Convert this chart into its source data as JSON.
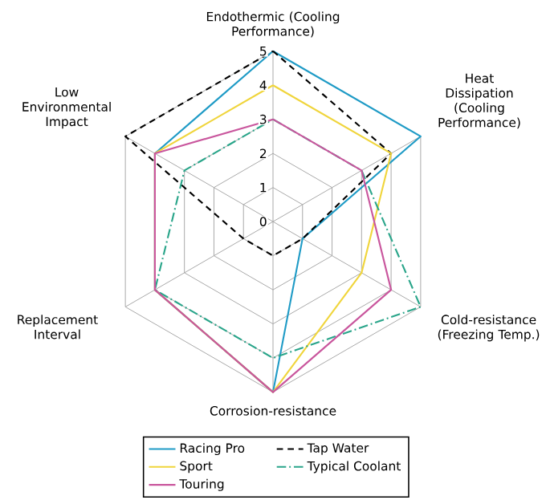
{
  "chart_data": {
    "type": "radar",
    "categories": [
      "Endothermic (Cooling Performance)",
      "Heat Dissipation (Cooling Performance)",
      "Cold-resistance (Freezing Temp.)",
      "Corrosion-resistance",
      "Replacement Interval",
      "Low Environmental Impact"
    ],
    "series": [
      {
        "name": "Racing Pro",
        "color": "#1f9bc6",
        "values": [
          5,
          5,
          1,
          5,
          4,
          4
        ]
      },
      {
        "name": "Tap Water",
        "color": "#000000",
        "line_style": "dashed",
        "values": [
          5,
          4,
          1,
          1,
          1,
          5
        ]
      },
      {
        "name": "Sport",
        "color": "#f0d53c",
        "values": [
          4,
          4,
          3,
          5,
          4,
          4
        ]
      },
      {
        "name": "Typical Coolant",
        "color": "#2aa58a",
        "line_style": "dashdot",
        "values": [
          3,
          3,
          5,
          4,
          4,
          3
        ]
      },
      {
        "name": "Touring",
        "color": "#c9569d",
        "values": [
          3,
          3,
          4,
          5,
          4,
          4
        ]
      }
    ],
    "ylim": [
      0,
      5
    ],
    "yticks": [
      0,
      1,
      2,
      3,
      4,
      5
    ],
    "grid": true,
    "legend": "bottom"
  }
}
